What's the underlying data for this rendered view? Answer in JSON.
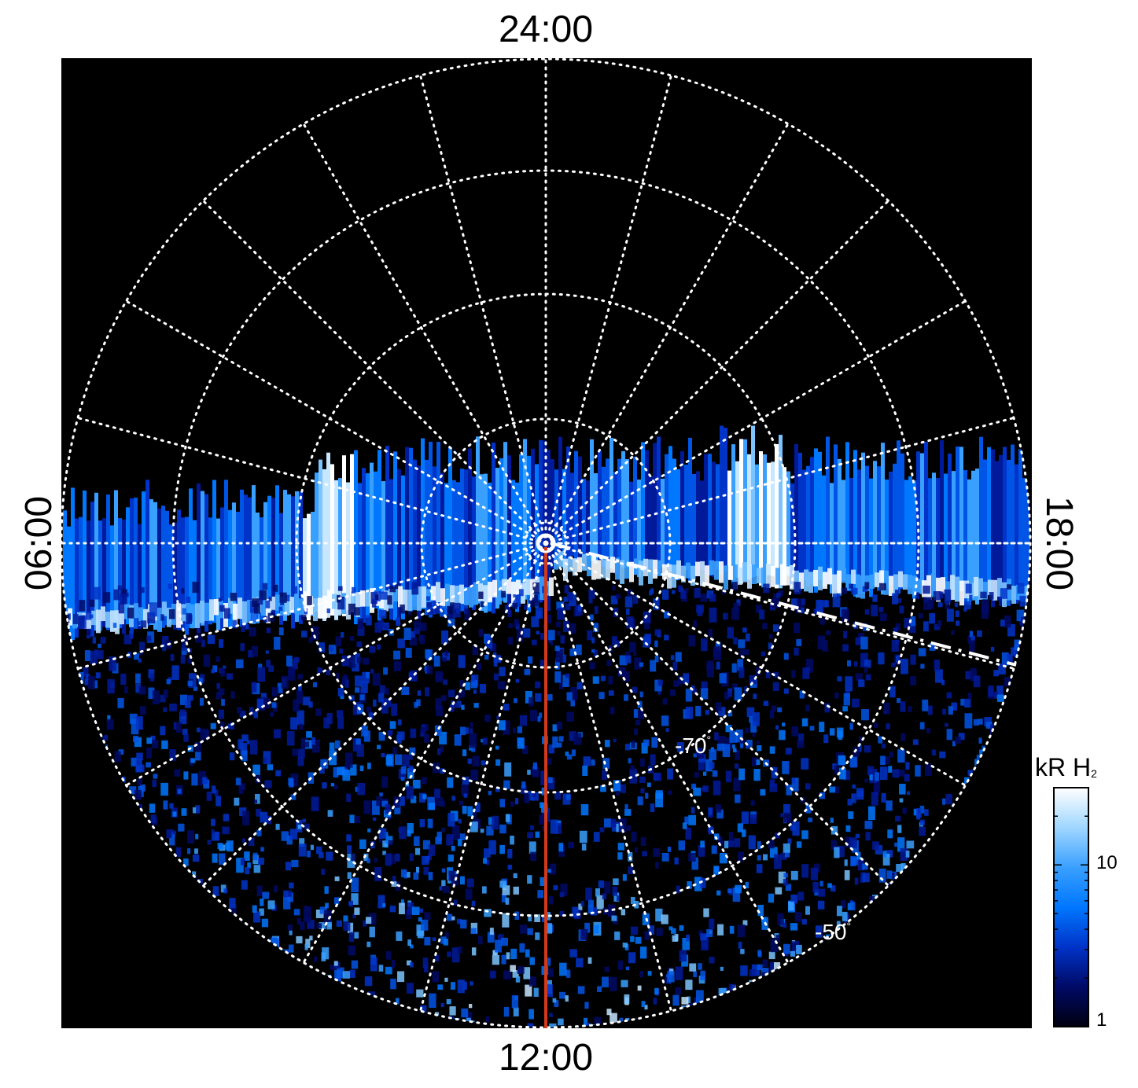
{
  "local_time_labels": {
    "top": "24:00",
    "bottom": "12:00",
    "left": "06:00",
    "right": "18:00"
  },
  "latitude_labels": [
    {
      "value": "-70",
      "unit": "°",
      "latitude_deg": -70
    },
    {
      "value": "-50",
      "unit": "°",
      "latitude_deg": -50
    }
  ],
  "colorbar": {
    "title": "kR H",
    "title_subscript": "2",
    "scale": "log",
    "range": [
      1,
      30
    ],
    "ticks": [
      "10",
      "1"
    ],
    "colormap": [
      "#000010",
      "#000a66",
      "#0033c8",
      "#0077ff",
      "#3aa0ff",
      "#9fd6ff",
      "#ffffff"
    ]
  },
  "overlay_colors": {
    "grid": "#ffffff",
    "noon_meridian": "#d23a1a",
    "background": "#000000"
  }
}
